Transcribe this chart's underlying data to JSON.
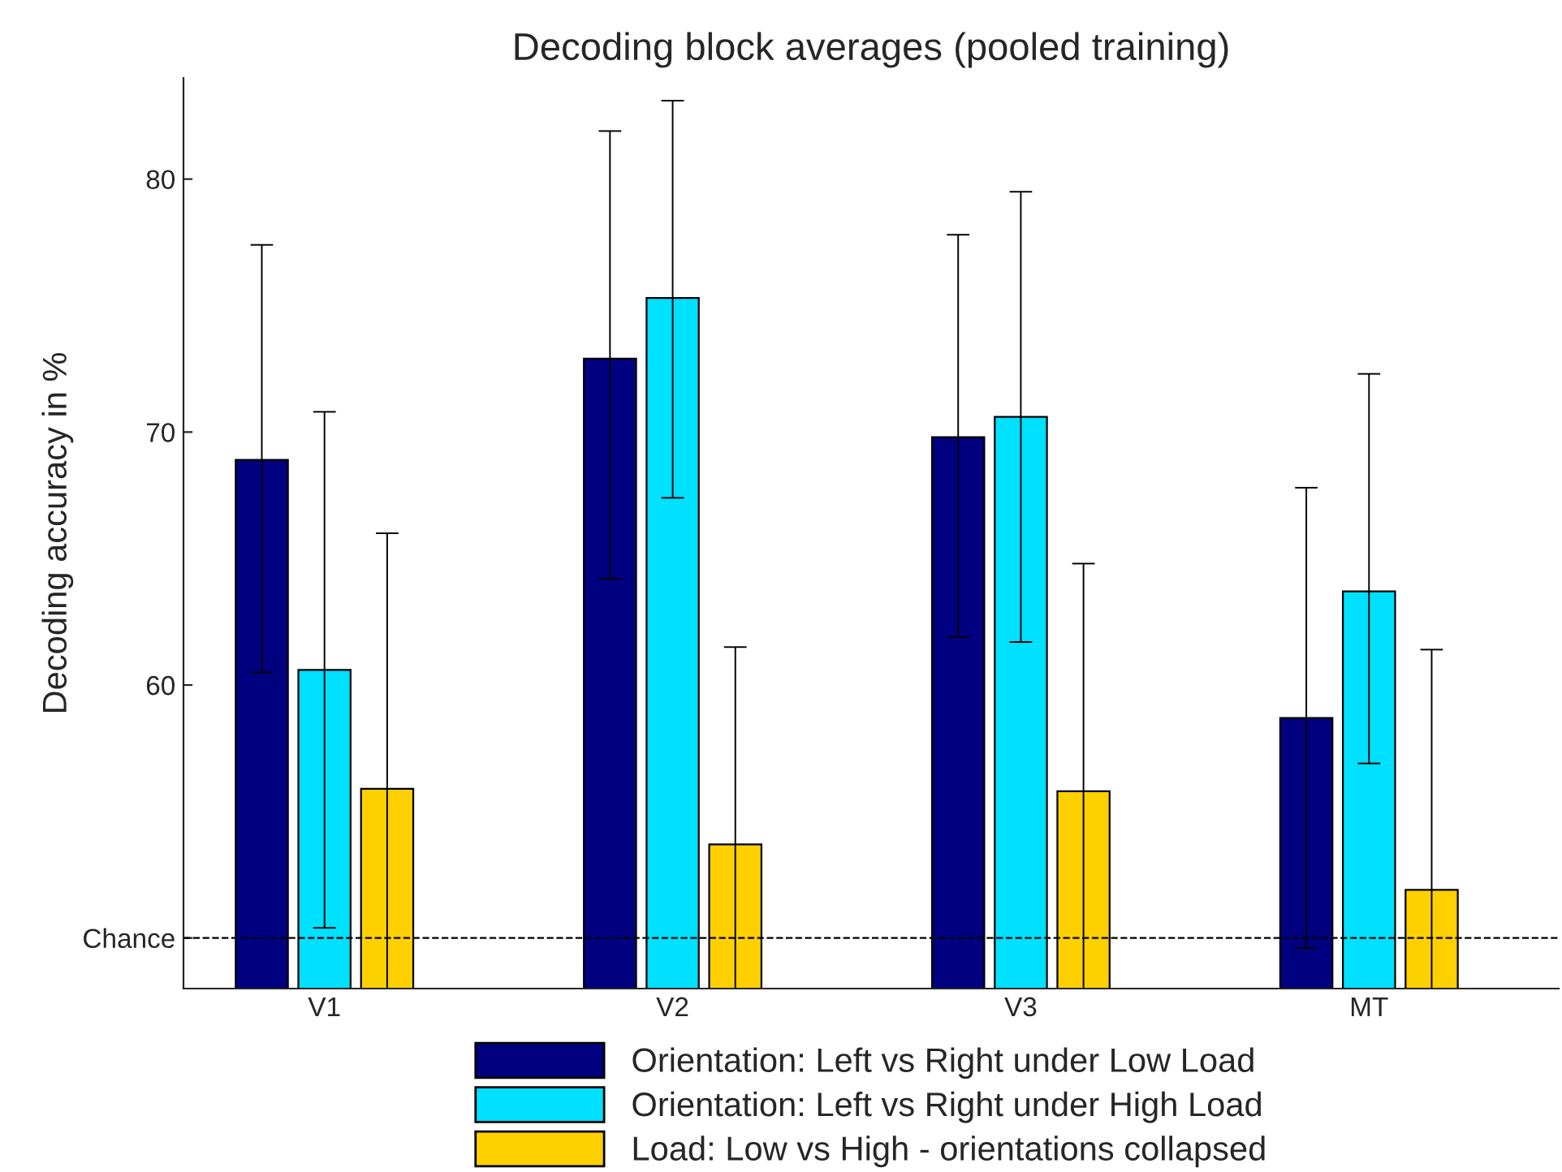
{
  "chart_data": {
    "type": "bar",
    "title": "Decoding block averages (pooled training)",
    "ylabel": "Decoding accuracy in %",
    "categories": [
      "V1",
      "V2",
      "V3",
      "MT"
    ],
    "series": [
      {
        "name": "Orientation: Left vs Right under Low Load",
        "color": "#000080",
        "values": [
          68.9,
          72.9,
          69.8,
          58.7
        ],
        "errors": [
          [
            60.5,
            77.4
          ],
          [
            64.2,
            81.9
          ],
          [
            61.9,
            77.8
          ],
          [
            49.6,
            67.8
          ]
        ]
      },
      {
        "name": "Orientation: Left vs Right under High Load",
        "color": "#00e0ff",
        "values": [
          60.6,
          75.3,
          70.6,
          63.7
        ],
        "errors": [
          [
            50.4,
            70.8
          ],
          [
            67.4,
            83.1
          ],
          [
            61.7,
            79.5
          ],
          [
            56.9,
            72.3
          ]
        ]
      },
      {
        "name": "Load: Low vs High - orientations collapsed",
        "color": "#ffd000",
        "values": [
          55.9,
          53.7,
          55.8,
          51.9
        ],
        "errors": [
          [
            48,
            66.0
          ],
          [
            48,
            61.5
          ],
          [
            48,
            64.8
          ],
          [
            48,
            61.4
          ]
        ]
      }
    ],
    "ylim": [
      48,
      84
    ],
    "yticks": [
      {
        "value": 50,
        "label": "Chance"
      },
      60,
      70,
      80
    ],
    "ref_lines": [
      {
        "axis": "y",
        "value": 50,
        "color": "#000000",
        "line_style": "dashed"
      }
    ],
    "grid": false,
    "legend": "bottom"
  }
}
